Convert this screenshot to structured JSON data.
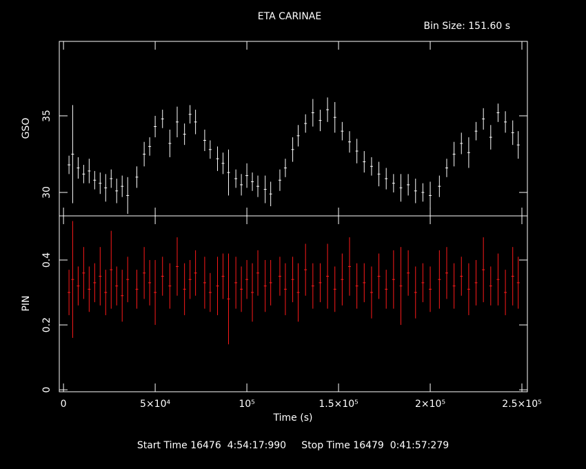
{
  "chart_data": [
    {
      "type": "errorbar",
      "title": "ETA CARINAE",
      "subtitle": "Bin Size: 151.60 s",
      "y_label": "GSO",
      "color": "#ffffff",
      "xlim": [
        -2300,
        253000
      ],
      "ylim": [
        28.47,
        39.86
      ],
      "yticks": [
        30,
        35
      ],
      "x": [
        3000,
        5000,
        8000,
        11000,
        14000,
        17000,
        20000,
        23000,
        26000,
        29000,
        32000,
        35000,
        40000,
        44000,
        47000,
        50000,
        54000,
        58000,
        62000,
        66000,
        69000,
        72000,
        77000,
        80000,
        84000,
        87000,
        90000,
        94000,
        97000,
        100000,
        103000,
        106000,
        110000,
        113000,
        118000,
        121000,
        125000,
        128000,
        132000,
        136000,
        140000,
        144000,
        148000,
        152000,
        156000,
        160000,
        164000,
        168000,
        172000,
        176000,
        180000,
        184000,
        188000,
        192000,
        196000,
        200000,
        205000,
        209000,
        213000,
        217000,
        221000,
        225000,
        229000,
        233000,
        237000,
        241000,
        245000,
        248000
      ],
      "values": [
        31.8,
        32.5,
        31.6,
        31.2,
        31.4,
        30.8,
        30.6,
        30.3,
        30.9,
        30.1,
        30.4,
        29.8,
        31.0,
        32.5,
        33.0,
        34.3,
        34.8,
        33.2,
        34.6,
        33.8,
        35.1,
        34.6,
        33.4,
        32.8,
        32.2,
        31.9,
        31.3,
        30.9,
        30.5,
        31.1,
        30.7,
        30.4,
        30.2,
        29.9,
        30.8,
        31.6,
        32.8,
        33.7,
        34.5,
        35.2,
        34.7,
        35.4,
        34.9,
        34.0,
        33.3,
        32.7,
        32.0,
        31.7,
        31.2,
        30.9,
        30.6,
        30.3,
        30.5,
        30.1,
        30.0,
        29.8,
        30.4,
        31.6,
        32.5,
        33.2,
        32.6,
        34.0,
        34.8,
        33.6,
        35.2,
        34.6,
        33.9,
        33.1
      ],
      "errors": [
        0.6,
        3.2,
        0.7,
        0.6,
        0.8,
        0.6,
        0.7,
        0.9,
        0.6,
        0.8,
        0.7,
        1.2,
        0.7,
        0.8,
        0.6,
        0.7,
        0.6,
        0.9,
        1.0,
        0.7,
        0.6,
        0.8,
        0.7,
        0.6,
        0.8,
        0.7,
        1.5,
        0.6,
        0.7,
        0.8,
        0.6,
        0.7,
        0.9,
        0.8,
        0.7,
        0.6,
        0.8,
        0.7,
        0.6,
        0.9,
        0.7,
        0.8,
        1.0,
        0.6,
        0.7,
        0.8,
        0.7,
        0.6,
        0.8,
        0.7,
        0.6,
        0.9,
        0.7,
        0.8,
        0.6,
        0.9,
        0.7,
        0.6,
        0.8,
        0.7,
        1.0,
        0.6,
        0.7,
        0.8,
        0.6,
        0.7,
        0.8,
        0.9
      ]
    },
    {
      "type": "errorbar",
      "y_label": "PIN",
      "x_label": "Time (s)",
      "footer": "Start Time 16476  4:54:17:990     Stop Time 16479  0:41:57:279",
      "color": "#ff1a1a",
      "xlim": [
        -2300,
        253000
      ],
      "ylim": [
        -0.006,
        0.536
      ],
      "yticks": [
        0,
        0.2,
        0.4
      ],
      "xticks": [
        0,
        {
          "value": 50000,
          "label": "5×10⁴"
        },
        {
          "value": 100000,
          "label": "10⁵"
        },
        {
          "value": 150000,
          "label": "1.5×10⁵"
        },
        {
          "value": 200000,
          "label": "2×10⁵"
        },
        {
          "value": 250000,
          "label": "2.5×10⁵"
        }
      ],
      "x": [
        3000,
        5000,
        8000,
        11000,
        14000,
        17000,
        20000,
        23000,
        26000,
        29000,
        32000,
        35000,
        40000,
        44000,
        47000,
        50000,
        54000,
        58000,
        62000,
        66000,
        69000,
        72000,
        77000,
        80000,
        84000,
        87000,
        90000,
        94000,
        97000,
        100000,
        103000,
        106000,
        110000,
        113000,
        118000,
        121000,
        125000,
        128000,
        132000,
        136000,
        140000,
        144000,
        148000,
        152000,
        156000,
        160000,
        164000,
        168000,
        172000,
        176000,
        180000,
        184000,
        188000,
        192000,
        196000,
        200000,
        205000,
        209000,
        213000,
        217000,
        221000,
        225000,
        229000,
        233000,
        237000,
        241000,
        245000,
        248000
      ],
      "values": [
        0.3,
        0.34,
        0.32,
        0.36,
        0.31,
        0.33,
        0.35,
        0.3,
        0.37,
        0.32,
        0.29,
        0.34,
        0.31,
        0.36,
        0.33,
        0.3,
        0.35,
        0.32,
        0.38,
        0.31,
        0.34,
        0.36,
        0.33,
        0.3,
        0.32,
        0.35,
        0.28,
        0.33,
        0.31,
        0.34,
        0.3,
        0.36,
        0.32,
        0.33,
        0.35,
        0.31,
        0.34,
        0.3,
        0.37,
        0.32,
        0.33,
        0.35,
        0.31,
        0.34,
        0.38,
        0.32,
        0.33,
        0.3,
        0.35,
        0.31,
        0.34,
        0.32,
        0.36,
        0.3,
        0.33,
        0.31,
        0.34,
        0.36,
        0.32,
        0.35,
        0.31,
        0.33,
        0.37,
        0.32,
        0.34,
        0.3,
        0.35,
        0.33
      ],
      "errors": [
        0.07,
        0.18,
        0.06,
        0.08,
        0.07,
        0.06,
        0.09,
        0.07,
        0.12,
        0.06,
        0.08,
        0.07,
        0.06,
        0.08,
        0.07,
        0.1,
        0.06,
        0.07,
        0.09,
        0.08,
        0.06,
        0.07,
        0.08,
        0.06,
        0.09,
        0.07,
        0.14,
        0.08,
        0.07,
        0.06,
        0.09,
        0.07,
        0.08,
        0.07,
        0.06,
        0.08,
        0.07,
        0.09,
        0.08,
        0.07,
        0.06,
        0.1,
        0.07,
        0.08,
        0.09,
        0.07,
        0.06,
        0.08,
        0.07,
        0.06,
        0.09,
        0.12,
        0.07,
        0.08,
        0.06,
        0.07,
        0.09,
        0.08,
        0.07,
        0.06,
        0.08,
        0.07,
        0.1,
        0.06,
        0.08,
        0.07,
        0.09,
        0.08
      ]
    }
  ]
}
